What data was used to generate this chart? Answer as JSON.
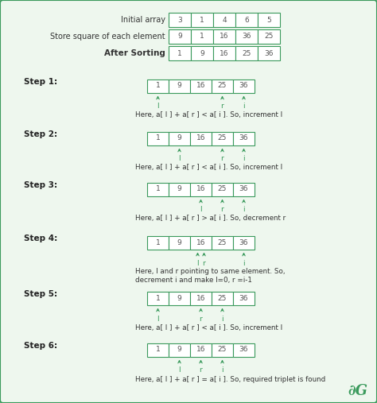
{
  "bg_color": "#eef7ee",
  "border_color": "#3a9a5c",
  "box_fill": "#ffffff",
  "box_edge": "#3a9a5c",
  "text_color": "#3a9a5c",
  "dark_text": "#333333",
  "arrow_color": "#3a9a5c",
  "initial_label": "Initial array",
  "initial_values": [
    "3",
    "1",
    "4",
    "6",
    "5"
  ],
  "squares_label": "Store square of each element",
  "squares_values": [
    "9",
    "1",
    "16",
    "36",
    "25"
  ],
  "sorted_label": "After Sorting",
  "sorted_values": [
    "1",
    "9",
    "16",
    "25",
    "36"
  ],
  "steps": [
    {
      "label": "Step 1:",
      "values": [
        "1",
        "9",
        "16",
        "25",
        "36"
      ],
      "arrows": [
        0,
        3,
        4
      ],
      "arrow_labels": [
        "l",
        "r",
        "i"
      ],
      "desc": "Here, a[ l ] + a[ r ] < a[ i ]. So, increment l"
    },
    {
      "label": "Step 2:",
      "values": [
        "1",
        "9",
        "16",
        "25",
        "36"
      ],
      "arrows": [
        1,
        3,
        4
      ],
      "arrow_labels": [
        "l",
        "r",
        "i"
      ],
      "desc": "Here, a[ l ] + a[ r ] < a[ i ]. So, increment l"
    },
    {
      "label": "Step 3:",
      "values": [
        "1",
        "9",
        "16",
        "25",
        "36"
      ],
      "arrows": [
        2,
        3,
        4
      ],
      "arrow_labels": [
        "l",
        "r",
        "i"
      ],
      "desc": "Here, a[ l ] + a[ r ] > a[ i ]. So, decrement r"
    },
    {
      "label": "Step 4:",
      "values": [
        "1",
        "9",
        "16",
        "25",
        "36"
      ],
      "arrows": [
        2,
        2,
        4
      ],
      "arrow_labels": [
        "l",
        "r",
        "i"
      ],
      "desc": "Here, l and r pointing to same element. So,\ndecrement i and make l=0, r =i-1"
    },
    {
      "label": "Step 5:",
      "values": [
        "1",
        "9",
        "16",
        "25",
        "36"
      ],
      "arrows": [
        0,
        2,
        3
      ],
      "arrow_labels": [
        "l",
        "r",
        "i"
      ],
      "desc": "Here, a[ l ] + a[ r ] < a[ i ]. So, increment l"
    },
    {
      "label": "Step 6:",
      "values": [
        "1",
        "9",
        "16",
        "25",
        "36"
      ],
      "arrows": [
        1,
        2,
        3
      ],
      "arrow_labels": [
        "l",
        "r",
        "i"
      ],
      "desc": "Here, a[ l ] + a[ r ] = a[ i ]. So, required triplet is found"
    }
  ]
}
